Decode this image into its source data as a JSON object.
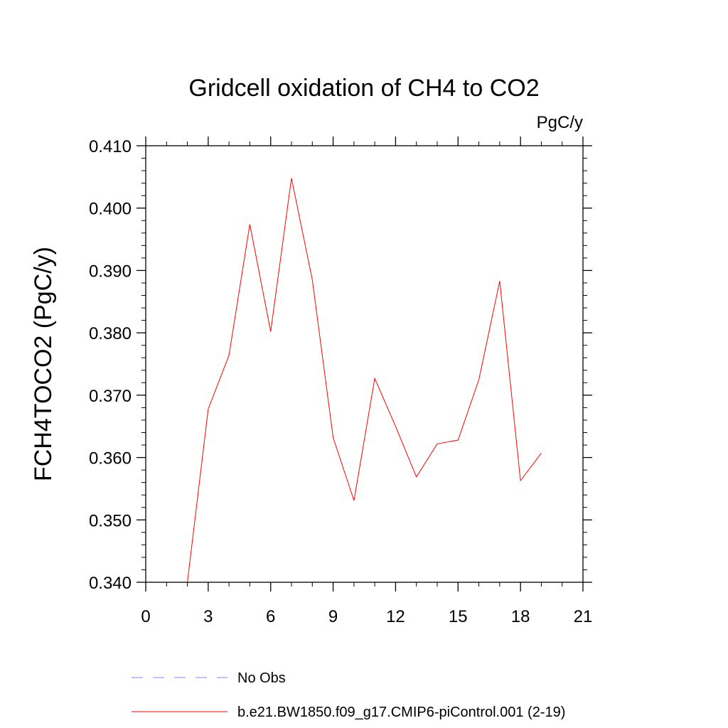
{
  "chart_data": {
    "type": "line",
    "title": "Gridcell oxidation of CH4 to CO2",
    "units_label": "PgC/y",
    "ylabel": "FCH4TOCO2  (PgC/y)",
    "xlabel": "",
    "xlim": [
      0,
      21
    ],
    "ylim": [
      0.34,
      0.41
    ],
    "x_ticks": [
      0,
      3,
      6,
      9,
      12,
      15,
      18,
      21
    ],
    "x_tick_labels": [
      "0",
      "3",
      "6",
      "9",
      "12",
      "15",
      "18",
      "21"
    ],
    "y_ticks": [
      0.34,
      0.35,
      0.36,
      0.37,
      0.38,
      0.39,
      0.4,
      0.41
    ],
    "y_tick_labels": [
      "0.340",
      "0.350",
      "0.360",
      "0.370",
      "0.380",
      "0.390",
      "0.400",
      "0.410"
    ],
    "grid": false,
    "series": [
      {
        "name": "b.e21.BW1850.f09_g17.CMIP6-piControl.001 (2-19)",
        "color": "#ff0000",
        "style": "solid",
        "x": [
          2,
          3,
          4,
          5,
          6,
          7,
          8,
          9,
          10,
          11,
          12,
          13,
          14,
          15,
          16,
          17,
          18,
          19
        ],
        "y": [
          0.34,
          0.3678,
          0.3764,
          0.3974,
          0.3802,
          0.4048,
          0.3885,
          0.3632,
          0.3531,
          0.3727,
          0.365,
          0.3569,
          0.3622,
          0.3628,
          0.3725,
          0.3883,
          0.3563,
          0.3607
        ]
      }
    ],
    "legend": [
      {
        "label": "No Obs",
        "color": "#8080ff",
        "style": "dashed"
      },
      {
        "label": "b.e21.BW1850.f09_g17.CMIP6-piControl.001 (2-19)",
        "color": "#ff0000",
        "style": "solid"
      }
    ],
    "legend_position": "bottom"
  }
}
